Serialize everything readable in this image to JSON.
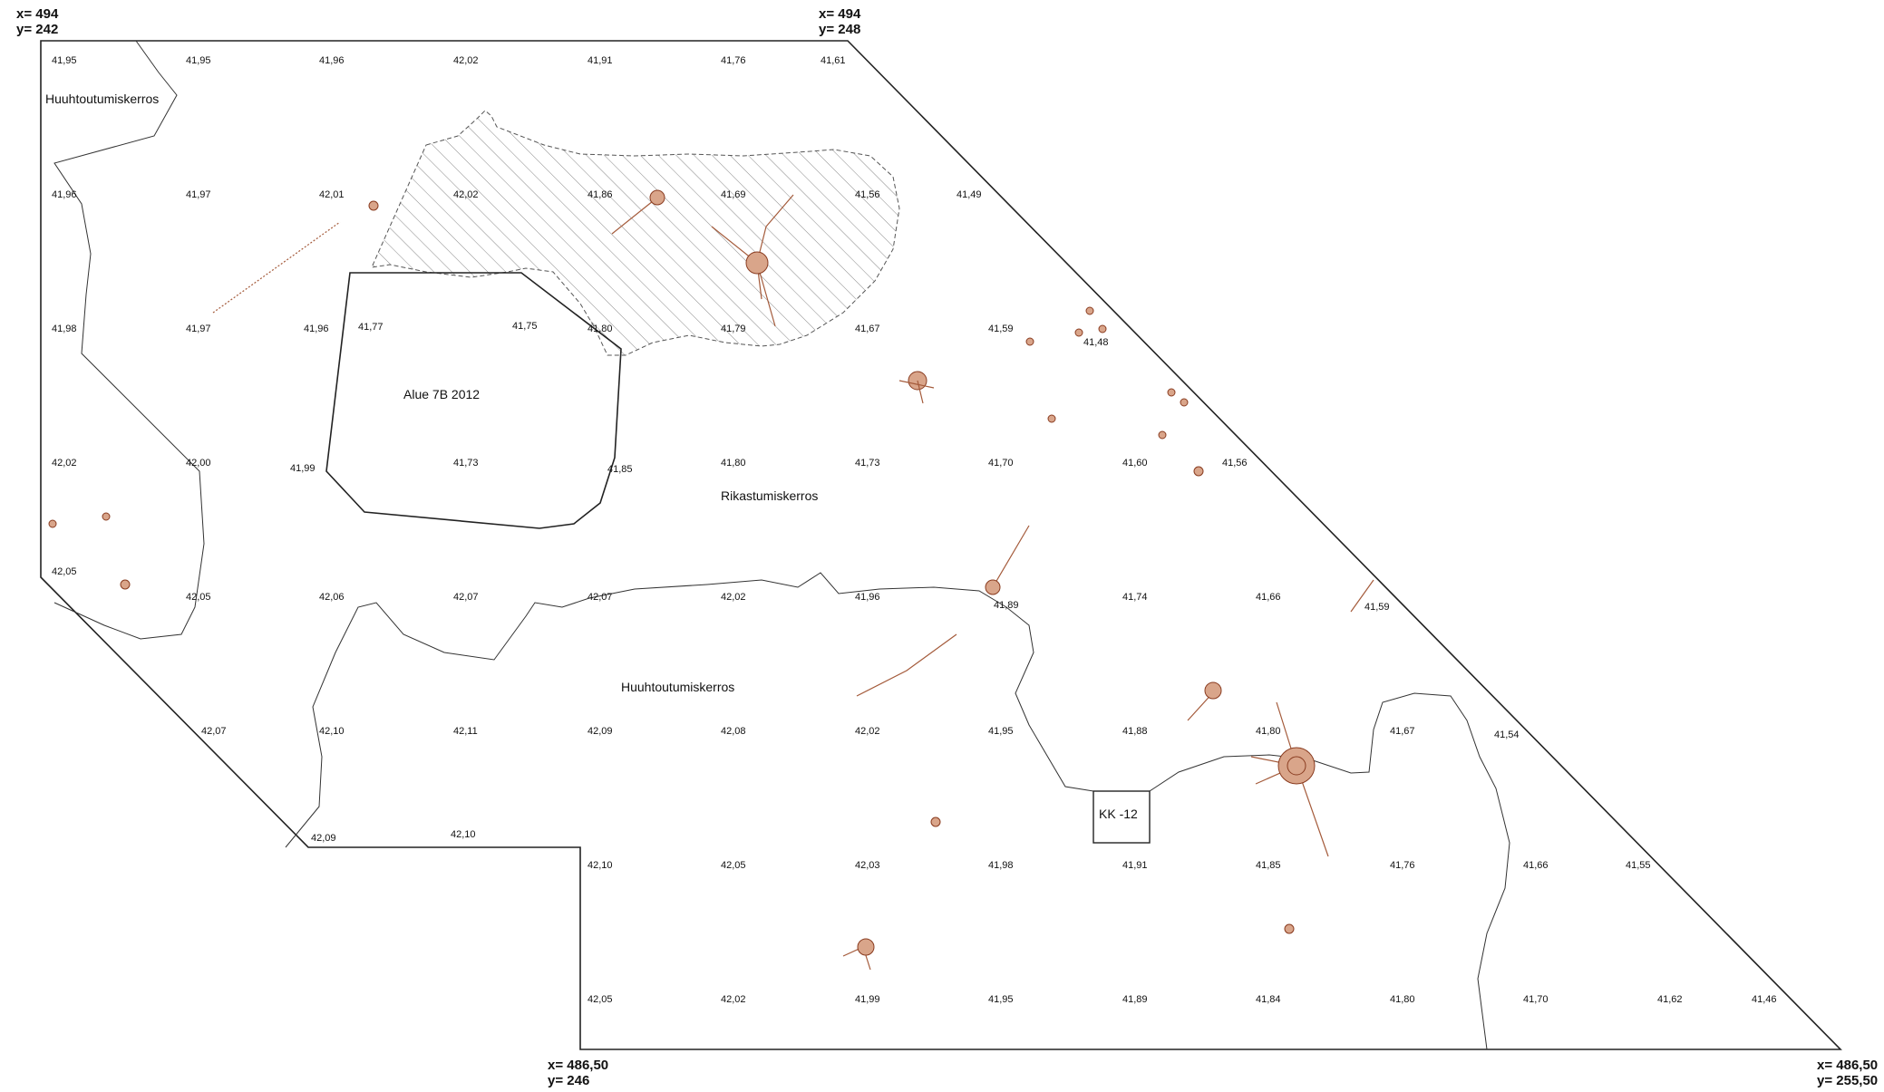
{
  "map": {
    "corners": {
      "top_left": {
        "x": "x= 494",
        "y": "y= 242"
      },
      "top_right": {
        "x": "x= 494",
        "y": "y= 248"
      },
      "bottom_left": {
        "x": "x= 486,50",
        "y": "y= 246"
      },
      "bottom_right": {
        "x": "x= 486,50",
        "y": "y= 255,50"
      }
    },
    "region_labels": {
      "huuhtoutumiskerros_top": "Huuhtoutumiskerros",
      "alue": "Alue 7B 2012",
      "rikastumiskerros": "Rikastumiskerros",
      "huuhtoutumiskerros_bottom": "Huuhtoutumiskerros",
      "kk": "KK -12"
    },
    "elevations": [
      [
        "41,95",
        "41,95",
        "41,96",
        "42,02",
        "41,91",
        "41,76",
        "41,61"
      ],
      [
        "41,96",
        "41,97",
        "42,01",
        "42,02",
        "41,86",
        "41,69",
        "41,56",
        "41,49"
      ],
      [
        "41,98",
        "41,97",
        "41,96",
        "41,77",
        "41,75",
        "41,80",
        "41,79",
        "41,67",
        "41,59",
        "41,48"
      ],
      [
        "42,02",
        "42,00",
        "41,99",
        "41,73",
        "41,85",
        "41,80",
        "41,73",
        "41,70",
        "41,60",
        "41,56"
      ],
      [
        "42,05",
        "42,05",
        "42,06",
        "42,07",
        "42,07",
        "42,02",
        "41,96",
        "41,89",
        "41,74",
        "41,66",
        "41,59"
      ],
      [
        "42,07",
        "42,10",
        "42,11",
        "42,09",
        "42,08",
        "42,02",
        "41,95",
        "41,88",
        "41,80",
        "41,67",
        "41,54"
      ],
      [
        "42,09",
        "42,10",
        "42,10",
        "42,05",
        "42,03",
        "41,98",
        "41,91",
        "41,85",
        "41,76",
        "41,66",
        "41,55"
      ],
      [
        "42,05",
        "42,02",
        "41,99",
        "41,95",
        "41,89",
        "41,84",
        "41,80",
        "41,70",
        "41,62",
        "41,46"
      ]
    ]
  }
}
